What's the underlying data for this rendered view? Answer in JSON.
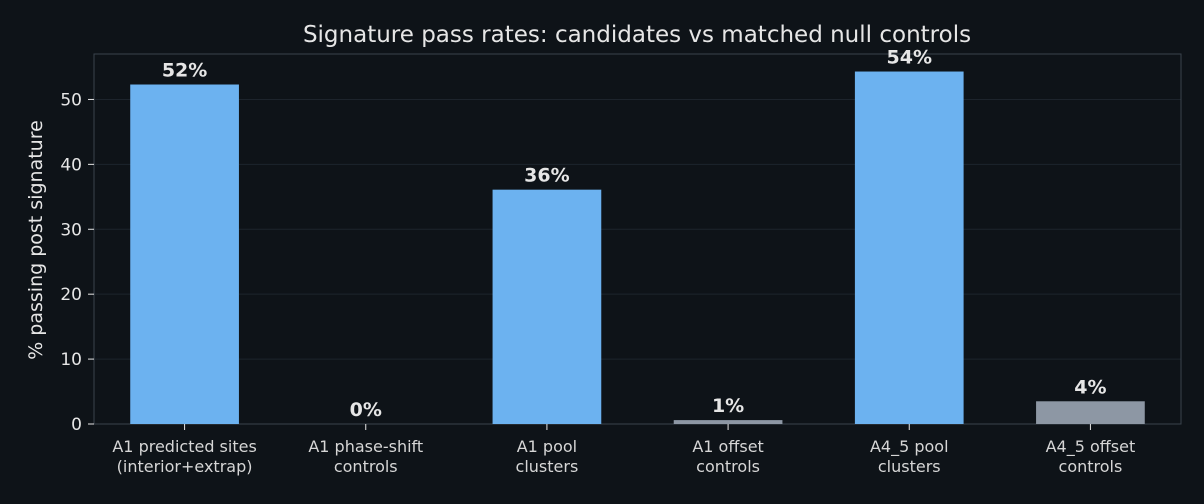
{
  "colors": {
    "background": "#0e1318",
    "candidate": "#6cb2f0",
    "control": "#8d97a4",
    "grid": "#1d242c",
    "axis": "#3a434d",
    "text": "#e6e6e6"
  },
  "chart_data": {
    "type": "bar",
    "title": "Signature pass rates: candidates vs matched null controls",
    "xlabel": "",
    "ylabel": "% passing post signature",
    "ylim": [
      0,
      57
    ],
    "yticks": [
      0,
      10,
      20,
      30,
      40,
      50
    ],
    "grid": true,
    "categories": [
      [
        "A1 predicted sites",
        "(interior+extrap)"
      ],
      [
        "A1 phase-shift",
        "controls"
      ],
      [
        "A1 pool",
        "clusters"
      ],
      [
        "A1 offset",
        "controls"
      ],
      [
        "A4_5 pool",
        "clusters"
      ],
      [
        "A4_5 offset",
        "controls"
      ]
    ],
    "values": [
      52.3,
      0,
      36.1,
      0.6,
      54.3,
      3.5
    ],
    "data_labels": [
      "52%",
      "0%",
      "36%",
      "1%",
      "54%",
      "4%"
    ],
    "bar_kinds": [
      "candidate",
      "control",
      "candidate",
      "control",
      "candidate",
      "control"
    ]
  }
}
